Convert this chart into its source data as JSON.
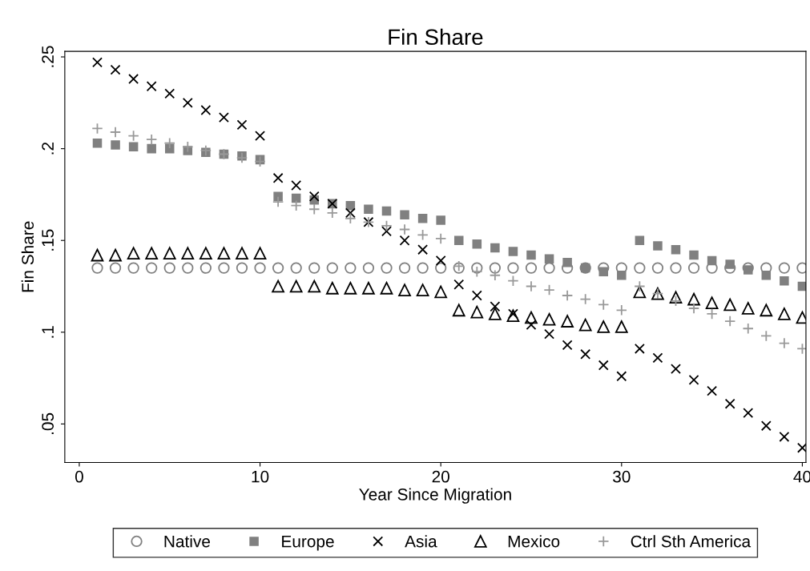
{
  "chart_data": {
    "type": "scatter",
    "title": "Fin Share",
    "xlabel": "Year Since Migration",
    "ylabel": "Fin Share",
    "x": [
      1,
      2,
      3,
      4,
      5,
      6,
      7,
      8,
      9,
      10,
      11,
      12,
      13,
      14,
      15,
      16,
      17,
      18,
      19,
      20,
      21,
      22,
      23,
      24,
      25,
      26,
      27,
      28,
      29,
      30,
      31,
      32,
      33,
      34,
      35,
      36,
      37,
      38,
      39,
      40
    ],
    "series": [
      {
        "name": "Native",
        "color": "#808080",
        "marker": "circle",
        "values": [
          0.135,
          0.135,
          0.135,
          0.135,
          0.135,
          0.135,
          0.135,
          0.135,
          0.135,
          0.135,
          0.135,
          0.135,
          0.135,
          0.135,
          0.135,
          0.135,
          0.135,
          0.135,
          0.135,
          0.135,
          0.135,
          0.135,
          0.135,
          0.135,
          0.135,
          0.135,
          0.135,
          0.135,
          0.135,
          0.135,
          0.135,
          0.135,
          0.135,
          0.135,
          0.135,
          0.135,
          0.135,
          0.135,
          0.135,
          0.135
        ]
      },
      {
        "name": "Europe",
        "color": "#808080",
        "marker": "square",
        "values": [
          0.203,
          0.202,
          0.201,
          0.2,
          0.2,
          0.199,
          0.198,
          0.197,
          0.196,
          0.194,
          0.174,
          0.173,
          0.172,
          0.17,
          0.169,
          0.167,
          0.166,
          0.164,
          0.162,
          0.161,
          0.15,
          0.148,
          0.146,
          0.144,
          0.142,
          0.14,
          0.138,
          0.135,
          0.133,
          0.131,
          0.15,
          0.147,
          0.145,
          0.142,
          0.139,
          0.137,
          0.134,
          0.131,
          0.128,
          0.125
        ]
      },
      {
        "name": "Asia",
        "color": "#000000",
        "marker": "cross",
        "values": [
          0.247,
          0.243,
          0.238,
          0.234,
          0.23,
          0.225,
          0.221,
          0.217,
          0.213,
          0.207,
          0.184,
          0.18,
          0.174,
          0.17,
          0.165,
          0.16,
          0.155,
          0.15,
          0.145,
          0.139,
          0.126,
          0.12,
          0.114,
          0.11,
          0.104,
          0.099,
          0.093,
          0.088,
          0.082,
          0.076,
          0.091,
          0.086,
          0.08,
          0.074,
          0.068,
          0.061,
          0.056,
          0.049,
          0.043,
          0.037
        ]
      },
      {
        "name": "Mexico",
        "color": "#000000",
        "marker": "triangle",
        "values": [
          0.142,
          0.142,
          0.143,
          0.143,
          0.143,
          0.143,
          0.143,
          0.143,
          0.143,
          0.143,
          0.125,
          0.125,
          0.125,
          0.124,
          0.124,
          0.124,
          0.124,
          0.123,
          0.123,
          0.122,
          0.112,
          0.111,
          0.11,
          0.109,
          0.108,
          0.107,
          0.106,
          0.104,
          0.103,
          0.103,
          0.122,
          0.121,
          0.119,
          0.118,
          0.116,
          0.115,
          0.113,
          0.112,
          0.11,
          0.108
        ]
      },
      {
        "name": "Ctrl Sth America",
        "color": "#999999",
        "marker": "plus",
        "values": [
          0.211,
          0.209,
          0.207,
          0.205,
          0.203,
          0.201,
          0.199,
          0.197,
          0.195,
          0.193,
          0.171,
          0.169,
          0.167,
          0.165,
          0.162,
          0.16,
          0.158,
          0.156,
          0.153,
          0.151,
          0.136,
          0.133,
          0.131,
          0.128,
          0.125,
          0.123,
          0.12,
          0.118,
          0.115,
          0.112,
          0.125,
          0.121,
          0.117,
          0.113,
          0.11,
          0.106,
          0.102,
          0.098,
          0.094,
          0.091
        ]
      }
    ],
    "xlim": [
      -0.8,
      40.2
    ],
    "xticks": [
      0,
      10,
      20,
      30,
      40
    ],
    "ylim": [
      0.029,
      0.253
    ],
    "yticks": [
      {
        "value": 0.05,
        "label": ".05"
      },
      {
        "value": 0.1,
        "label": ".1"
      },
      {
        "value": 0.15,
        "label": ".15"
      },
      {
        "value": 0.2,
        "label": ".2"
      },
      {
        "value": 0.25,
        "label": ".25"
      }
    ],
    "grid": false,
    "legend": "bottom"
  }
}
